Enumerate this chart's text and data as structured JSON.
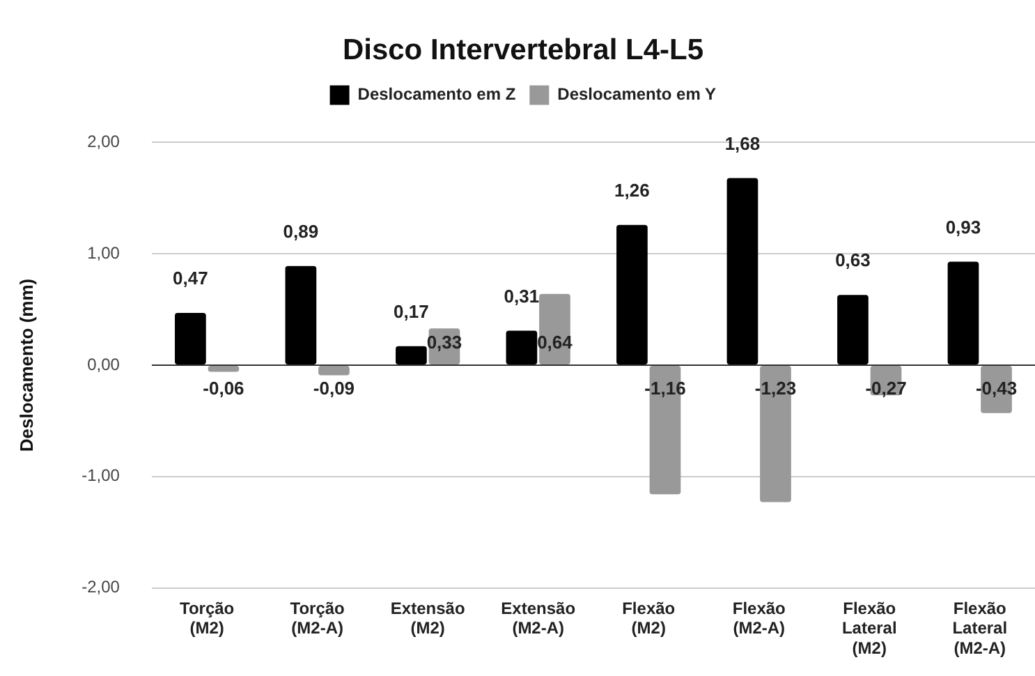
{
  "chart_data": {
    "type": "bar",
    "title": "Disco Intervertebral L4-L5",
    "ylabel": "Deslocamento (mm)",
    "categories": [
      "Torção (M2)",
      "Torção (M2-A)",
      "Extensão (M2)",
      "Extensão (M2-A)",
      "Flexão (M2)",
      "Flexão (M2-A)",
      "Flexão Lateral (M2)",
      "Flexão Lateral (M2-A)"
    ],
    "series": [
      {
        "name": "Deslocamento em Z",
        "color": "#000000",
        "values": [
          0.47,
          0.89,
          0.17,
          0.31,
          1.26,
          1.68,
          0.63,
          0.93
        ],
        "value_labels": [
          "0,47",
          "0,89",
          "0,17",
          "0,31",
          "1,26",
          "1,68",
          "0,63",
          "0,93"
        ]
      },
      {
        "name": "Deslocamento em Y",
        "color": "#999999",
        "values": [
          -0.06,
          -0.09,
          0.33,
          0.64,
          -1.16,
          -1.23,
          -0.27,
          -0.43
        ],
        "value_labels": [
          "-0,06",
          "-0,09",
          "0,33",
          "0,64",
          "-1,16",
          "-1,23",
          "-0,27",
          "-0,43"
        ]
      }
    ],
    "ylim": [
      -2,
      2
    ],
    "yticks": [
      {
        "value": -2,
        "label": "-2,00"
      },
      {
        "value": -1,
        "label": "-1,00"
      },
      {
        "value": 0,
        "label": "0,00"
      },
      {
        "value": 1,
        "label": "1,00"
      },
      {
        "value": 2,
        "label": "2,00"
      }
    ],
    "grid": "y",
    "legend": "top"
  }
}
